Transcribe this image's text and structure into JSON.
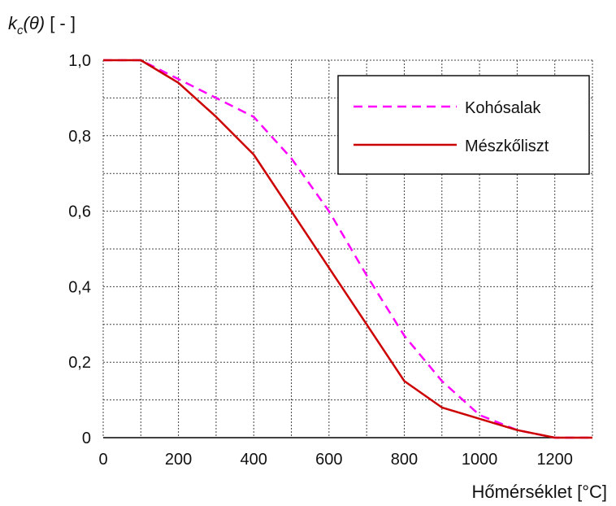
{
  "chart_data": {
    "type": "line",
    "ylabel": {
      "symbol": "k",
      "subscript": "c",
      "argument": "(θ)",
      "unit": " [ - ]"
    },
    "xlabel": "Hőmérséklet [°C]",
    "xlim": [
      0,
      1300
    ],
    "ylim": [
      0,
      1.0
    ],
    "x_ticks": [
      0,
      200,
      400,
      600,
      800,
      1000,
      1200
    ],
    "x_tick_labels": [
      "0",
      "200",
      "400",
      "600",
      "800",
      "1000",
      "1200"
    ],
    "y_ticks": [
      0,
      0.2,
      0.4,
      0.6,
      0.8,
      1.0
    ],
    "y_tick_labels": [
      "0",
      "0,2",
      "0,4",
      "0,6",
      "0,8",
      "1,0"
    ],
    "grid": true,
    "grid_x_step": 100,
    "grid_y_step": 0.1,
    "legend_position": "top-right",
    "series": [
      {
        "name": "Kohósalak",
        "color": "#ff00ff",
        "dash": "dashed",
        "points": [
          [
            0,
            1.0
          ],
          [
            100,
            1.0
          ],
          [
            200,
            0.95
          ],
          [
            300,
            0.9
          ],
          [
            400,
            0.85
          ],
          [
            500,
            0.74
          ],
          [
            600,
            0.6
          ],
          [
            700,
            0.43
          ],
          [
            800,
            0.27
          ],
          [
            900,
            0.15
          ],
          [
            1000,
            0.06
          ],
          [
            1100,
            0.02
          ],
          [
            1200,
            0.0
          ],
          [
            1300,
            0.0
          ]
        ]
      },
      {
        "name": "Mészkőliszt",
        "color": "#cc0000",
        "dash": "solid",
        "points": [
          [
            0,
            1.0
          ],
          [
            100,
            1.0
          ],
          [
            200,
            0.94
          ],
          [
            300,
            0.85
          ],
          [
            400,
            0.75
          ],
          [
            500,
            0.6
          ],
          [
            600,
            0.45
          ],
          [
            700,
            0.3
          ],
          [
            800,
            0.15
          ],
          [
            900,
            0.08
          ],
          [
            1000,
            0.05
          ],
          [
            1100,
            0.02
          ],
          [
            1200,
            0.0
          ],
          [
            1300,
            0.0
          ]
        ]
      }
    ]
  }
}
